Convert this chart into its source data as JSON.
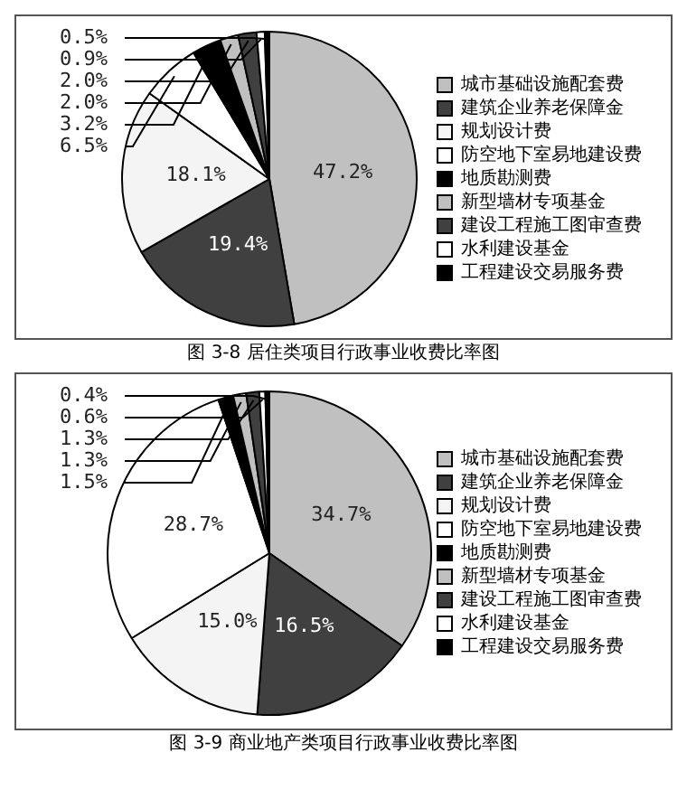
{
  "chart_data": [
    {
      "type": "pie",
      "title": "图 3-8 居住类项目行政事业收费比率图",
      "categories": [
        "城市基础设施配套费",
        "建筑企业养老保障金",
        "规划设计费",
        "防空地下室易地建设费",
        "地质勘测费",
        "新型墙材专项基金",
        "建设工程施工图审查费",
        "水利建设基金",
        "工程建设交易服务费"
      ],
      "values": [
        47.2,
        19.4,
        18.1,
        6.5,
        3.2,
        2.0,
        2.0,
        0.9,
        0.5
      ],
      "colors": [
        "#c0c0c0",
        "#404040",
        "#f4f4f4",
        "#ffffff",
        "#000000",
        "#c0c0c0",
        "#404040",
        "#ffffff",
        "#000000"
      ],
      "value_labels": [
        "47.2%",
        "19.4%",
        "18.1%",
        "6.5%",
        "3.2%",
        "2.0%",
        "2.0%",
        "0.9%",
        "0.5%"
      ],
      "legend": "right"
    },
    {
      "type": "pie",
      "title": "图 3-9 商业地产类项目行政事业收费比率图",
      "categories": [
        "城市基础设施配套费",
        "建筑企业养老保障金",
        "规划设计费",
        "防空地下室易地建设费",
        "地质勘测费",
        "新型墙材专项基金",
        "建设工程施工图审查费",
        "水利建设基金",
        "工程建设交易服务费"
      ],
      "values": [
        34.7,
        16.5,
        15.0,
        28.7,
        1.5,
        1.3,
        1.3,
        0.6,
        0.4
      ],
      "colors": [
        "#c0c0c0",
        "#404040",
        "#f4f4f4",
        "#ffffff",
        "#000000",
        "#c0c0c0",
        "#404040",
        "#ffffff",
        "#000000"
      ],
      "value_labels": [
        "34.7%",
        "16.5%",
        "15.0%",
        "28.7%",
        "1.5%",
        "1.3%",
        "1.3%",
        "0.6%",
        "0.4%"
      ],
      "legend": "right"
    }
  ]
}
